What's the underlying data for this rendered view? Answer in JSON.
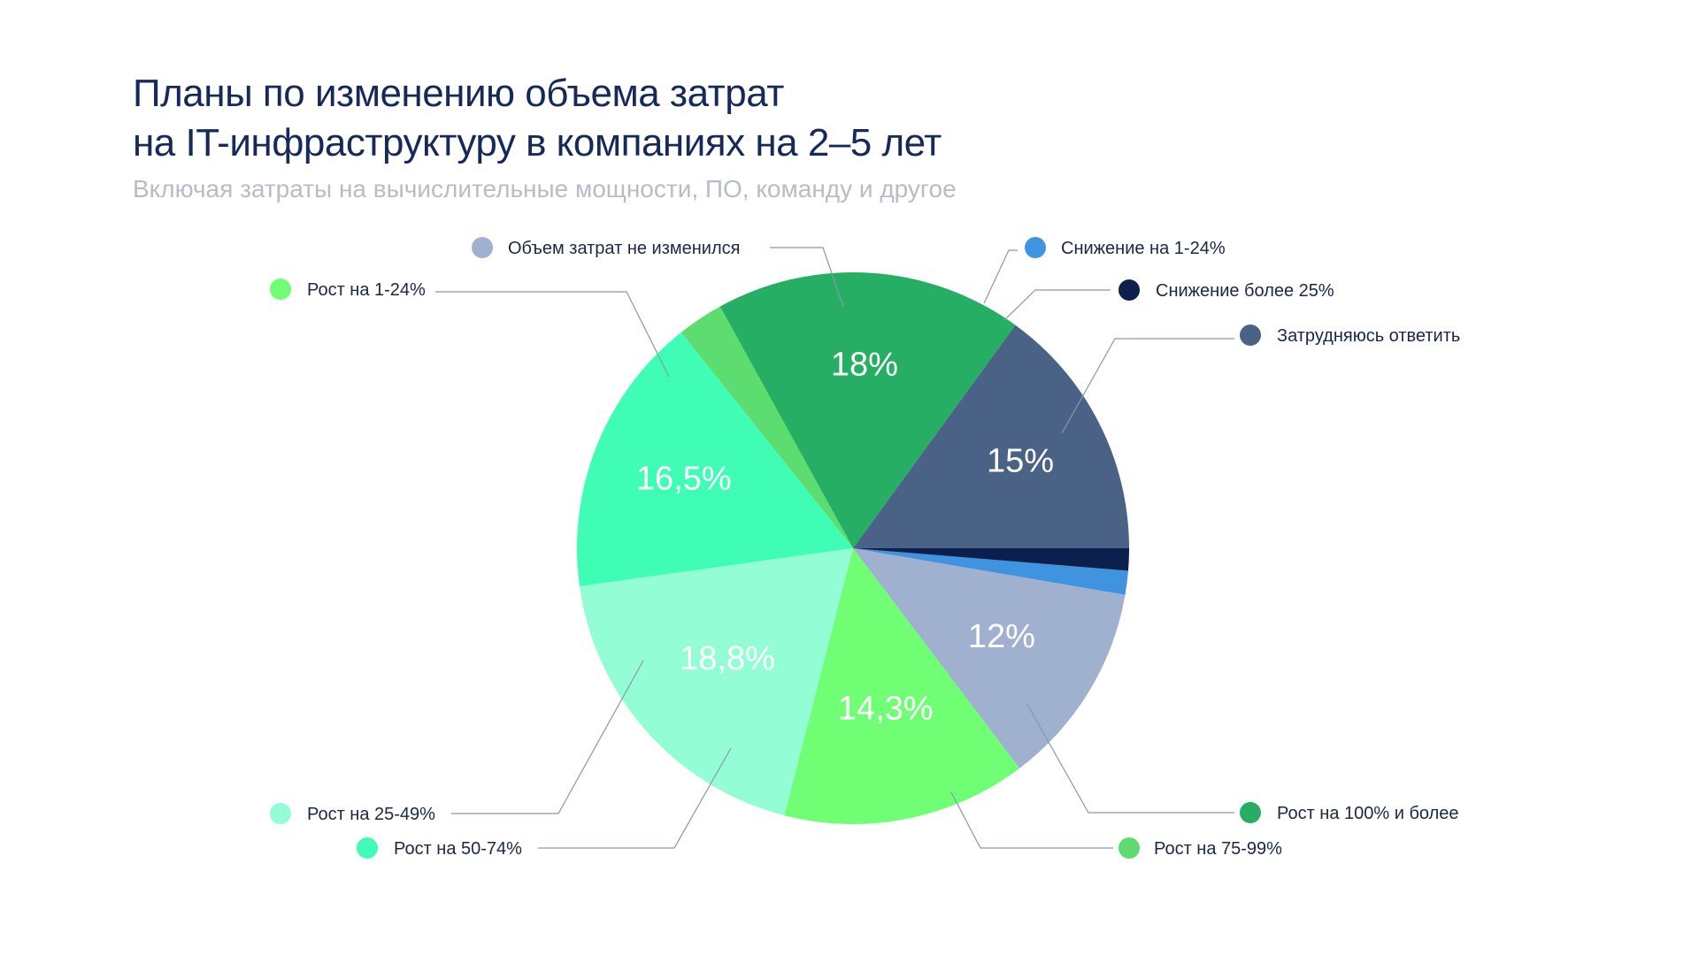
{
  "title": {
    "line1": "Планы по изменению объема затрат",
    "line2": "на IT-инфраструктуру в компаниях на 2–5 лет"
  },
  "subtitle": "Включая затраты на вычислительные мощности, ПО, команду и другое",
  "chart_data": {
    "type": "pie",
    "title": "Планы по изменению объема затрат на IT-инфраструктуру в компаниях на 2–5 лет",
    "subtitle": "Включая затраты на вычислительные мощности, ПО, команду и другое",
    "unit": "%",
    "slices": [
      {
        "name": "Затрудняюсь ответить",
        "value": 15,
        "label": "15%",
        "color": "#4a6286"
      },
      {
        "name": "Рост на 100% и более",
        "value": 18,
        "label": "18%",
        "color": "#26ae64"
      },
      {
        "name": "Рост на 75-99%",
        "value": 2.7,
        "label": "",
        "color": "#5ddc6f"
      },
      {
        "name": "Рост на 50-74%",
        "value": 16.5,
        "label": "16,5%",
        "color": "#3ffdb4"
      },
      {
        "name": "Рост на 25-49%",
        "value": 18.8,
        "label": "18,8%",
        "color": "#93fdd6"
      },
      {
        "name": "Рост на 1-24%",
        "value": 14.3,
        "label": "14,3%",
        "color": "#6ffe74"
      },
      {
        "name": "Объем затрат не изменился",
        "value": 12,
        "label": "12%",
        "color": "#9fb1cf"
      },
      {
        "name": "Снижение на 1-24%",
        "value": 1.4,
        "label": "",
        "color": "#3f93df"
      },
      {
        "name": "Снижение более 25%",
        "value": 1.3,
        "label": "",
        "color": "#0c1f4d"
      }
    ]
  }
}
